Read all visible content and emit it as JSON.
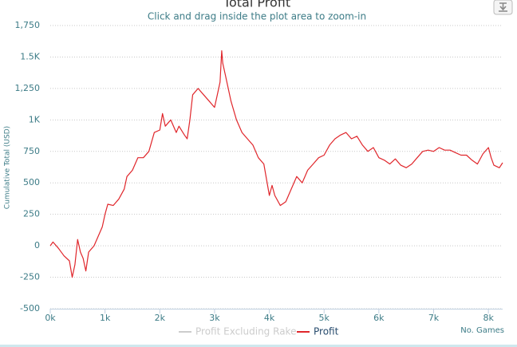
{
  "chart_data": {
    "type": "line",
    "title": "Total Profit",
    "subtitle": "Click and drag inside the plot area to zoom-in",
    "y_label": "Cumulative Total (USD)",
    "x_label": "No. Games",
    "xlim": [
      0,
      8260
    ],
    "ylim": [
      -500,
      1750
    ],
    "xticks": [
      {
        "value": 0,
        "label": "0k"
      },
      {
        "value": 1000,
        "label": "1k"
      },
      {
        "value": 2000,
        "label": "2k"
      },
      {
        "value": 3000,
        "label": "3k"
      },
      {
        "value": 4000,
        "label": "4k"
      },
      {
        "value": 5000,
        "label": "5k"
      },
      {
        "value": 6000,
        "label": "6k"
      },
      {
        "value": 7000,
        "label": "7k"
      },
      {
        "value": 8000,
        "label": "8k"
      }
    ],
    "yticks": [
      -500,
      -250,
      0,
      250,
      500,
      750,
      {
        "value": 1000,
        "label": "1K"
      },
      {
        "value": 1250,
        "label": "1,250"
      },
      {
        "value": 1500,
        "label": "1.5K"
      },
      {
        "value": 1750,
        "label": "1,750"
      }
    ],
    "grid": true,
    "legend": "bottom",
    "x": [
      0,
      50,
      150,
      250,
      350,
      400,
      450,
      500,
      550,
      600,
      650,
      700,
      800,
      900,
      950,
      1000,
      1050,
      1150,
      1250,
      1350,
      1400,
      1500,
      1600,
      1700,
      1800,
      1900,
      2000,
      2050,
      2100,
      2200,
      2300,
      2350,
      2450,
      2500,
      2550,
      2600,
      2700,
      2800,
      2900,
      3000,
      3050,
      3100,
      3130,
      3150,
      3200,
      3300,
      3400,
      3500,
      3600,
      3700,
      3800,
      3900,
      4000,
      4050,
      4100,
      4200,
      4300,
      4400,
      4500,
      4600,
      4700,
      4800,
      4900,
      5000,
      5100,
      5200,
      5300,
      5400,
      5500,
      5600,
      5700,
      5800,
      5900,
      6000,
      6100,
      6200,
      6300,
      6400,
      6500,
      6600,
      6700,
      6800,
      6900,
      7000,
      7100,
      7200,
      7300,
      7400,
      7500,
      7600,
      7700,
      7800,
      7900,
      8000,
      8050,
      8100,
      8200,
      8260
    ],
    "series": [
      {
        "name": "Profit Excluding Rake",
        "color": "#cccccc",
        "visible": false
      },
      {
        "name": "Profit",
        "color": "#e0262b",
        "visible": true,
        "values": [
          0,
          30,
          -20,
          -80,
          -120,
          -250,
          -150,
          50,
          -50,
          -100,
          -200,
          -50,
          0,
          100,
          150,
          250,
          330,
          320,
          370,
          450,
          550,
          600,
          700,
          700,
          750,
          900,
          920,
          1050,
          950,
          1000,
          900,
          950,
          880,
          850,
          1000,
          1200,
          1250,
          1200,
          1150,
          1100,
          1200,
          1300,
          1550,
          1450,
          1350,
          1150,
          1000,
          900,
          850,
          800,
          700,
          650,
          400,
          480,
          400,
          320,
          350,
          450,
          550,
          500,
          600,
          650,
          700,
          720,
          800,
          850,
          880,
          900,
          850,
          870,
          800,
          750,
          780,
          700,
          680,
          650,
          690,
          640,
          620,
          650,
          700,
          750,
          760,
          750,
          780,
          760,
          760,
          740,
          720,
          720,
          680,
          650,
          730,
          780,
          700,
          640,
          620,
          660
        ]
      }
    ]
  }
}
